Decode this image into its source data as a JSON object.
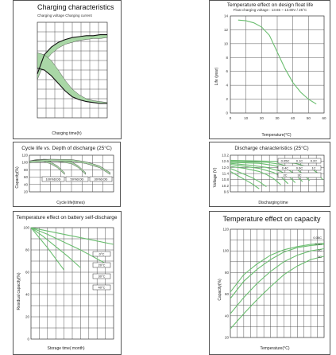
{
  "colors": {
    "green": "#6abd6f",
    "band": "#a9d7a6",
    "black": "#111111"
  },
  "chart_data": [
    {
      "id": "charging",
      "type": "line",
      "title": "Charging characteristics",
      "subtitle": "Charging voltage   Charging current",
      "xlabel": "Charging time(h)",
      "ylabel_left": "Voltage",
      "ylabel_right": "Current",
      "ylim": [
        0,
        10
      ],
      "x": [
        0,
        1,
        2,
        3,
        4,
        5,
        6,
        7,
        8,
        9,
        10
      ],
      "series": [
        {
          "values": [
            4.6,
            6.6,
            7.4,
            7.9,
            8.2,
            8.4,
            8.5,
            8.6,
            8.6,
            8.7,
            8.7
          ]
        },
        {
          "values": [
            4.0,
            5.8,
            6.7,
            7.3,
            7.7,
            7.9,
            8.1,
            8.2,
            8.3,
            8.3,
            8.4
          ]
        },
        {
          "values": [
            6.8,
            6.6,
            6.0,
            5.0,
            3.9,
            3.0,
            2.4,
            2.0,
            1.8,
            1.7,
            1.6
          ]
        },
        {
          "values": [
            5.2,
            5.0,
            4.4,
            3.6,
            2.8,
            2.2,
            1.9,
            1.7,
            1.6,
            1.5,
            1.5
          ]
        }
      ]
    },
    {
      "id": "float-life",
      "type": "line",
      "title": "Temperature effect on design float life",
      "subtitle": "Float charging voltage : 13.65 ~ 13.80V / 25°C",
      "xlabel": "Temperature(°C)",
      "ylabel": "Life (year)",
      "x_ticks": [
        "0",
        "10",
        "20",
        "30",
        "40",
        "50",
        "60"
      ],
      "y_ticks": [
        "0",
        "2",
        "4",
        "6",
        "8",
        "10",
        "12",
        "14"
      ],
      "xlim": [
        0,
        60
      ],
      "ylim": [
        0,
        14
      ],
      "x": [
        5,
        10,
        15,
        20,
        25,
        30,
        35,
        40,
        45,
        50,
        55
      ],
      "values": [
        13.4,
        13.3,
        13.0,
        12.4,
        11.2,
        8.8,
        6.4,
        4.4,
        3.0,
        2.0,
        1.3
      ]
    },
    {
      "id": "cycle-life",
      "type": "line",
      "title": "Cycle life vs. Depth of discharge (25°C)",
      "xlabel": "Cycle life(times)",
      "ylabel": "Capacity(%)",
      "y_ticks": [
        "120",
        "100",
        "80",
        "60",
        "40",
        "20"
      ],
      "x_ticks": [
        "0",
        "200",
        "400",
        "600",
        "800",
        "1000",
        "1200"
      ],
      "legend": [
        "100%DOD",
        "50%DOD",
        "30%DOD"
      ],
      "xlim": [
        0,
        1200
      ],
      "ylim": [
        0,
        120
      ],
      "series": [
        {
          "name": "100%DOD",
          "x": [
            0,
            100,
            200,
            300,
            400,
            500
          ],
          "values": [
            98,
            103,
            102,
            95,
            82,
            60
          ]
        },
        {
          "name": "50%DOD",
          "x": [
            0,
            200,
            400,
            600,
            700,
            800
          ],
          "values": [
            98,
            104,
            103,
            95,
            82,
            60
          ]
        },
        {
          "name": "30%DOD",
          "x": [
            0,
            300,
            600,
            800,
            1000,
            1150
          ],
          "values": [
            98,
            104,
            103,
            96,
            82,
            60
          ]
        }
      ]
    },
    {
      "id": "discharge",
      "type": "line",
      "title": "Discharge characteristics (25°C)",
      "xlabel": "Discharging time",
      "ylabel": "Voltage (V)",
      "y_ticks": [
        "13.2",
        "12.6",
        "12.0",
        "11.4",
        "10.8",
        "10.2",
        "9.6"
      ],
      "x_ticks": [
        "1",
        "2",
        "3",
        "5",
        "10",
        "20",
        "30",
        "60",
        "2",
        "3",
        "5",
        "10",
        "20"
      ],
      "legend": [
        "0.05C",
        "0.1C",
        "0.2C",
        "0.4C",
        "0.6C",
        "1C",
        "2C",
        "3C"
      ],
      "ylim": [
        9.6,
        13.2
      ],
      "series": [
        {
          "name": "3C",
          "x": [
            0,
            1,
            2,
            3,
            4
          ],
          "values": [
            11.6,
            11.2,
            10.8,
            10.4,
            9.9
          ]
        },
        {
          "name": "2C",
          "x": [
            0,
            1,
            2,
            3,
            4,
            5
          ],
          "values": [
            11.9,
            11.6,
            11.3,
            11.0,
            10.6,
            10.1
          ]
        },
        {
          "name": "1C",
          "x": [
            0,
            2,
            4,
            5,
            6,
            7
          ],
          "values": [
            12.1,
            11.9,
            11.6,
            11.3,
            10.9,
            10.3
          ]
        },
        {
          "name": "0.6C",
          "x": [
            0,
            2,
            4,
            6,
            7,
            8
          ],
          "values": [
            12.3,
            12.1,
            11.9,
            11.5,
            11.1,
            10.4
          ]
        },
        {
          "name": "0.4C",
          "x": [
            0,
            3,
            5,
            7,
            8,
            9
          ],
          "values": [
            12.4,
            12.2,
            12.0,
            11.6,
            11.2,
            10.5
          ]
        },
        {
          "name": "0.2C",
          "x": [
            0,
            4,
            6,
            8,
            9,
            10
          ],
          "values": [
            12.5,
            12.4,
            12.2,
            11.8,
            11.3,
            10.6
          ]
        },
        {
          "name": "0.1C",
          "x": [
            0,
            5,
            7,
            9,
            10,
            11
          ],
          "values": [
            12.6,
            12.5,
            12.3,
            11.9,
            11.4,
            10.7
          ]
        },
        {
          "name": "0.05C",
          "x": [
            0,
            6,
            9,
            11,
            12,
            12.8
          ],
          "values": [
            12.7,
            12.6,
            12.4,
            12.0,
            11.5,
            10.8
          ]
        }
      ]
    },
    {
      "id": "self-discharge",
      "type": "line",
      "title": "Temperature effect on battery self-discharge",
      "xlabel": "Storage time( month)",
      "ylabel": "Residual capacity(%)",
      "y_ticks": [
        "100",
        "80",
        "60",
        "40",
        "20",
        "0"
      ],
      "x_ticks": [
        "0",
        "2",
        "4",
        "6",
        "8",
        "10",
        "12",
        "14",
        "16",
        "18",
        "20"
      ],
      "legend": [
        "0°C",
        "20°C",
        "30°C",
        "40°C"
      ],
      "xlim": [
        0,
        20
      ],
      "ylim": [
        0,
        100
      ],
      "series": [
        {
          "name": "0°C",
          "x": [
            0,
            4,
            8,
            12,
            16,
            20
          ],
          "values": [
            100,
            97,
            94,
            91,
            88,
            85
          ]
        },
        {
          "name": "20°C",
          "x": [
            0,
            4,
            8,
            12,
            16,
            18
          ],
          "values": [
            100,
            94,
            87,
            80,
            72,
            68
          ]
        },
        {
          "name": "30°C",
          "x": [
            0,
            3,
            6,
            9,
            12
          ],
          "values": [
            100,
            92,
            83,
            74,
            64
          ]
        },
        {
          "name": "40°C",
          "x": [
            0,
            2,
            4,
            6,
            8
          ],
          "values": [
            100,
            91,
            82,
            72,
            62
          ]
        }
      ]
    },
    {
      "id": "temp-capacity",
      "type": "line",
      "title": "Temperature effect on capacity",
      "xlabel": "Temperature(°C)",
      "ylabel": "Capacity(%)",
      "y_ticks": [
        "120",
        "100",
        "80",
        "60",
        "40",
        "20"
      ],
      "x_ticks": [
        "-20",
        "-10",
        "0",
        "10",
        "20",
        "30",
        "40",
        "50"
      ],
      "legend": [
        "0.05C",
        "0.1C",
        "1C",
        "3C"
      ],
      "xlim": [
        -20,
        50
      ],
      "ylim": [
        20,
        120
      ],
      "series": [
        {
          "name": "0.05C",
          "x": [
            -20,
            -10,
            0,
            10,
            20,
            30,
            40,
            50
          ],
          "values": [
            62,
            78,
            88,
            96,
            101,
            104,
            106,
            107
          ]
        },
        {
          "name": "0.1C",
          "x": [
            -20,
            -10,
            0,
            10,
            20,
            30,
            40,
            50
          ],
          "values": [
            56,
            72,
            83,
            92,
            99,
            103,
            105,
            106
          ]
        },
        {
          "name": "1C",
          "x": [
            -20,
            -10,
            0,
            10,
            20,
            30,
            40,
            50
          ],
          "values": [
            42,
            57,
            70,
            81,
            90,
            96,
            100,
            102
          ]
        },
        {
          "name": "3C",
          "x": [
            -20,
            -10,
            0,
            10,
            20,
            30,
            40,
            50
          ],
          "values": [
            28,
            42,
            55,
            67,
            78,
            86,
            92,
            95
          ]
        }
      ]
    }
  ]
}
